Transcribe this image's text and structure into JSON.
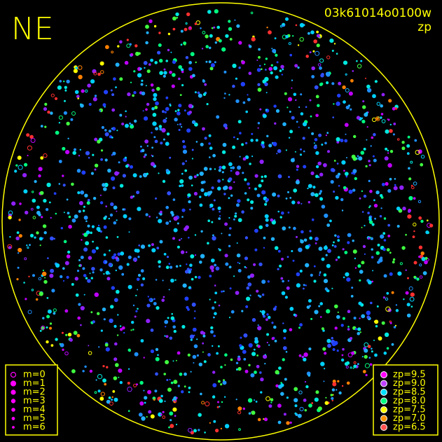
{
  "header": {
    "direction": "NE",
    "image_id": "03k61014o0100w",
    "mode": "zp"
  },
  "magnitude_legend": [
    "m=0",
    "m=1",
    "m=2",
    "m=3",
    "m=4",
    "m=5",
    "m=6"
  ],
  "zp_legend": [
    "zp=9.5",
    "zp=9.0",
    "zp=8.5",
    "zp=8.0",
    "zp=7.5",
    "zp=7.0",
    "zp=6.5"
  ]
}
